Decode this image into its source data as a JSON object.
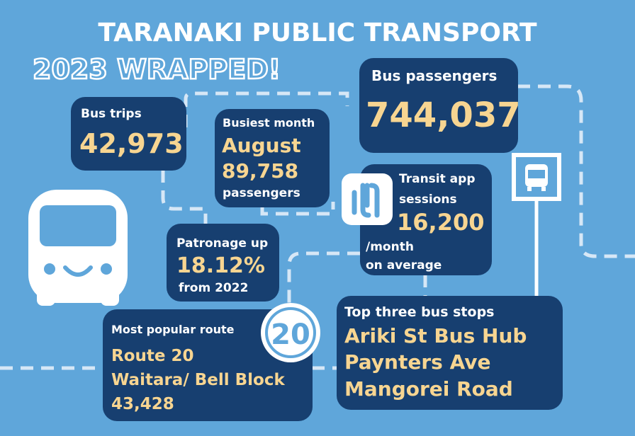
{
  "header": {
    "title": "TARANAKI PUBLIC TRANSPORT",
    "subtitle": "2023 WRAPPED!"
  },
  "bus_trips": {
    "label": "Bus trips",
    "value": "42,973"
  },
  "busiest_month": {
    "label": "Busiest month",
    "month": "August",
    "value": "89,758",
    "unit": "passengers"
  },
  "bus_passengers": {
    "label": "Bus passengers",
    "value": "744,037"
  },
  "transit_app": {
    "label_lines": [
      "Transit app",
      "sessions"
    ],
    "value": "16,200",
    "note_lines": [
      "/month",
      "on average"
    ]
  },
  "patronage": {
    "label": "Patronage up",
    "value": "18.12%",
    "note": "from 2022"
  },
  "popular_route": {
    "label": "Most popular route",
    "route": "Route 20",
    "name": "Waitara/ Bell Block",
    "value": "43,428",
    "badge": "20"
  },
  "top_stops": {
    "label": "Top three bus stops",
    "stops": [
      "Ariki St Bus Hub",
      "Paynters Ave",
      "Mangorei Road"
    ]
  }
}
